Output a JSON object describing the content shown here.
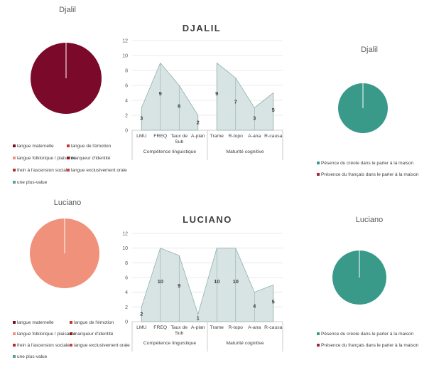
{
  "chart_data": [
    {
      "type": "pie",
      "title": "Djalil",
      "categories": [
        "langue maternelle",
        "langue de l'émotion",
        "langue folklorique / plaisante",
        "marqueur d'identité",
        "frein à l'ascension sociale",
        "langue exclusivement orale",
        "une plus-value"
      ],
      "values": [
        1,
        0,
        0,
        0,
        0,
        0,
        0
      ],
      "colors": [
        "#7b0a2a",
        "#c0392b",
        "#f0917b",
        "#8b1a1a",
        "#b03030",
        "#d04040",
        "#5a9e9a"
      ],
      "legend": "bottom"
    },
    {
      "type": "area",
      "title": "DJALIL",
      "categories": [
        "LMU",
        "FREQ",
        "Taux de Sub",
        "A-plan",
        "Trame",
        "R-topo",
        "A-ana",
        "R-causa"
      ],
      "groups": [
        {
          "label": "Compétence linguistique",
          "start": 0,
          "end": 3
        },
        {
          "label": "Maturité cognitive",
          "start": 4,
          "end": 7
        }
      ],
      "series": [
        {
          "values": [
            3,
            9,
            6,
            2,
            null,
            null,
            null,
            null
          ]
        },
        {
          "values": [
            null,
            null,
            null,
            null,
            9,
            7,
            3,
            5
          ]
        }
      ],
      "ylim": [
        0,
        12
      ],
      "yticks": [
        0,
        2,
        4,
        6,
        8,
        10,
        12
      ],
      "grid": true
    },
    {
      "type": "pie",
      "title": "Djalil",
      "categories": [
        "Pésence du créole dans le parler à la maison",
        "Présence du français dans le parler à la maison"
      ],
      "values": [
        1,
        0
      ],
      "colors": [
        "#3a9a8a",
        "#a0283c"
      ],
      "legend": "bottom"
    },
    {
      "type": "pie",
      "title": "Luciano",
      "categories": [
        "langue maternelle",
        "langue de l'émotion",
        "langue folklorique / plaisante",
        "marqueur d'identité",
        "frein à l'ascension sociale",
        "langue exclusivement orale",
        "une plus-value"
      ],
      "values": [
        0,
        0,
        1,
        0,
        0,
        0,
        0
      ],
      "colors": [
        "#7b0a2a",
        "#c0392b",
        "#f0917b",
        "#8b1a1a",
        "#b03030",
        "#d04040",
        "#5a9e9a"
      ],
      "legend": "bottom"
    },
    {
      "type": "area",
      "title": "LUCIANO",
      "categories": [
        "LMU",
        "FREQ",
        "Taux de Sub",
        "A-plan",
        "Trame",
        "R-topo",
        "A-ana",
        "R-causa"
      ],
      "groups": [
        {
          "label": "Compétence linguistique",
          "start": 0,
          "end": 3
        },
        {
          "label": "Maturité cognitive",
          "start": 4,
          "end": 7
        }
      ],
      "series": [
        {
          "values": [
            2,
            10,
            9,
            1,
            10,
            10,
            4,
            5
          ]
        }
      ],
      "ylim": [
        0,
        12
      ],
      "yticks": [
        0,
        2,
        4,
        6,
        8,
        10,
        12
      ],
      "grid": true
    },
    {
      "type": "pie",
      "title": "Luciano",
      "categories": [
        "Pésence du créole dans le parler à la maison",
        "Présence du français dans le parler à la maison"
      ],
      "values": [
        1,
        0
      ],
      "colors": [
        "#3a9a8a",
        "#a0283c"
      ],
      "legend": "bottom"
    }
  ]
}
